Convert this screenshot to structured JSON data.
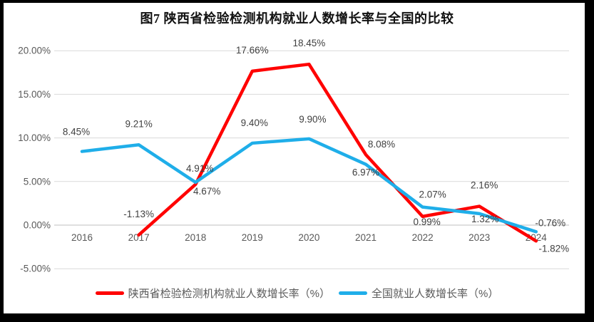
{
  "title": "图7 陕西省检验检测机构就业人数增长率与全国的比较",
  "chart_data": {
    "type": "line",
    "categories": [
      "2016",
      "2017",
      "2018",
      "2019",
      "2020",
      "2021",
      "2022",
      "2023",
      "2024"
    ],
    "y_axis": {
      "tick_labels": [
        "20.00%",
        "15.00%",
        "10.00%",
        "5.00%",
        "0.00%",
        "-5.00%"
      ],
      "tick_values": [
        20,
        15,
        10,
        5,
        0,
        -5
      ],
      "range": [
        -5,
        20
      ],
      "grid": true
    },
    "legend_position": "bottom",
    "series": [
      {
        "name": "陕西省检验检测机构就业人数增长率（%）",
        "color": "#FF0000",
        "values": [
          null,
          -1.13,
          4.67,
          17.66,
          18.45,
          8.08,
          0.99,
          2.16,
          -1.82
        ],
        "point_labels": [
          null,
          {
            "text": "-1.13%",
            "dx": 0,
            "dy": -25
          },
          {
            "text": "4.67%",
            "dx": 16,
            "dy": 14
          },
          {
            "text": "17.66%",
            "dx": 0,
            "dy": -25
          },
          {
            "text": "18.45%",
            "dx": 0,
            "dy": -25
          },
          {
            "text": "8.08%",
            "dx": 22,
            "dy": -10
          },
          {
            "text": "0.99%",
            "dx": 6,
            "dy": 12
          },
          {
            "text": "2.16%",
            "dx": 7,
            "dy": -25
          },
          {
            "text": "-1.82%",
            "dx": 25,
            "dy": 15
          }
        ]
      },
      {
        "name": "全国就业人数增长率（%）",
        "color": "#1FAEE9",
        "values": [
          8.45,
          9.21,
          4.91,
          9.4,
          9.9,
          6.97,
          2.07,
          1.32,
          -0.76
        ],
        "point_labels": [
          {
            "text": "8.45%",
            "dx": -8,
            "dy": -23
          },
          {
            "text": "9.21%",
            "dx": 0,
            "dy": -25
          },
          {
            "text": "4.91%",
            "dx": 6,
            "dy": -15
          },
          {
            "text": "9.40%",
            "dx": 3,
            "dy": -24
          },
          {
            "text": "9.90%",
            "dx": 5,
            "dy": -23
          },
          {
            "text": "6.97%",
            "dx": 0,
            "dy": 16
          },
          {
            "text": "2.07%",
            "dx": 14,
            "dy": -13
          },
          {
            "text": "1.32%",
            "dx": 8,
            "dy": 12
          },
          {
            "text": "-0.76%",
            "dx": 20,
            "dy": -8
          }
        ]
      }
    ],
    "colors": {
      "grid": "#D9D9D9",
      "zero_line": "#BFBFBF",
      "axis_text": "#595959",
      "label_text": "#404040"
    }
  }
}
